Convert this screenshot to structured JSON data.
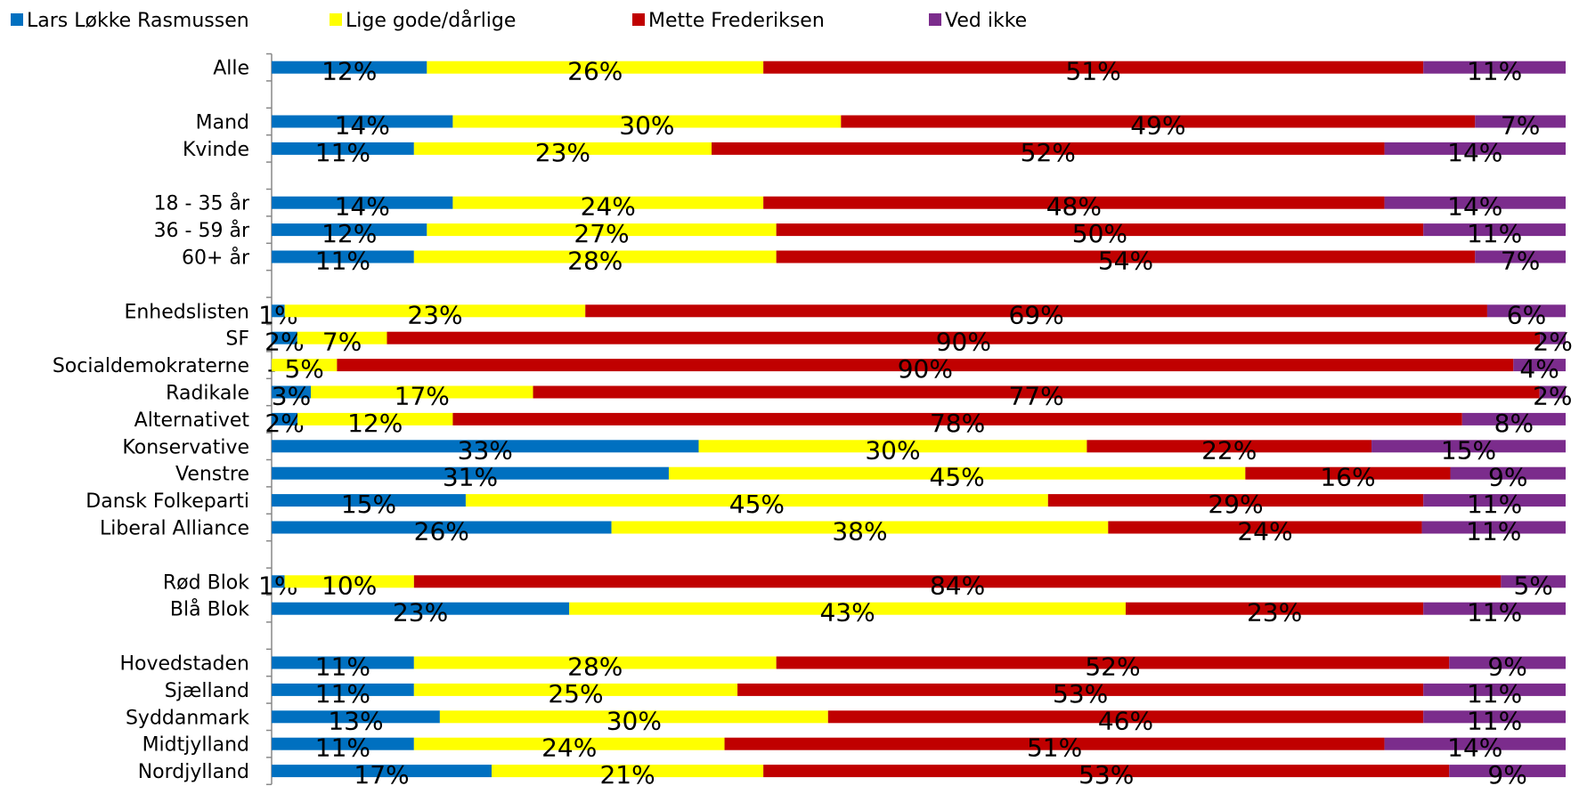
{
  "chart_data": {
    "type": "bar",
    "orientation": "horizontal",
    "stacked": "percent",
    "legend_position": "top",
    "grid": false,
    "xlim": [
      0,
      100
    ],
    "series": [
      {
        "name": "Lars Løkke Rasmussen",
        "color": "#0070C0"
      },
      {
        "name": "Lige gode/dårlige",
        "color": "#FFFF00"
      },
      {
        "name": "Mette Frederiksen",
        "color": "#C00000"
      },
      {
        "name": "Ved ikke",
        "color": "#7B2C8C"
      }
    ],
    "rows": [
      {
        "category": "Alle",
        "values": [
          12,
          26,
          51,
          11
        ],
        "labels": [
          "12%",
          "26%",
          "51%",
          "11%"
        ]
      },
      {
        "category": "",
        "gap": true
      },
      {
        "category": "Mand",
        "values": [
          14,
          30,
          49,
          7
        ],
        "labels": [
          "14%",
          "30%",
          "49%",
          "7%"
        ]
      },
      {
        "category": "Kvinde",
        "values": [
          11,
          23,
          52,
          14
        ],
        "labels": [
          "11%",
          "23%",
          "52%",
          "14%"
        ]
      },
      {
        "category": "",
        "gap": true
      },
      {
        "category": "18 - 35 år",
        "values": [
          14,
          24,
          48,
          14
        ],
        "labels": [
          "14%",
          "24%",
          "48%",
          "14%"
        ]
      },
      {
        "category": "36 - 59 år",
        "values": [
          12,
          27,
          50,
          11
        ],
        "labels": [
          "12%",
          "27%",
          "50%",
          "11%"
        ]
      },
      {
        "category": "60+ år",
        "values": [
          11,
          28,
          54,
          7
        ],
        "labels": [
          "11%",
          "28%",
          "54%",
          "7%"
        ]
      },
      {
        "category": "",
        "gap": true
      },
      {
        "category": "Enhedslisten",
        "values": [
          1,
          23,
          69,
          6
        ],
        "labels": [
          "1%",
          "23%",
          "69%",
          "6%"
        ]
      },
      {
        "category": "SF",
        "values": [
          2,
          7,
          90,
          2
        ],
        "labels": [
          "2%",
          "7%",
          "90%",
          "2%"
        ]
      },
      {
        "category": "Socialdemokraterne",
        "values": [
          0,
          5,
          90,
          4
        ],
        "labels": [
          "-",
          "5%",
          "90%",
          "4%"
        ]
      },
      {
        "category": "Radikale",
        "values": [
          3,
          17,
          77,
          2
        ],
        "labels": [
          "3%",
          "17%",
          "77%",
          "2%"
        ]
      },
      {
        "category": "Alternativet",
        "values": [
          2,
          12,
          78,
          8
        ],
        "labels": [
          "2%",
          "12%",
          "78%",
          "8%"
        ]
      },
      {
        "category": "Konservative",
        "values": [
          33,
          30,
          22,
          15
        ],
        "labels": [
          "33%",
          "30%",
          "22%",
          "15%"
        ]
      },
      {
        "category": "Venstre",
        "values": [
          31,
          45,
          16,
          9
        ],
        "labels": [
          "31%",
          "45%",
          "16%",
          "9%"
        ]
      },
      {
        "category": "Dansk Folkeparti",
        "values": [
          15,
          45,
          29,
          11
        ],
        "labels": [
          "15%",
          "45%",
          "29%",
          "11%"
        ]
      },
      {
        "category": "Liberal Alliance",
        "values": [
          26,
          38,
          24,
          11
        ],
        "labels": [
          "26%",
          "38%",
          "24%",
          "11%"
        ]
      },
      {
        "category": "",
        "gap": true
      },
      {
        "category": "Rød Blok",
        "values": [
          1,
          10,
          84,
          5
        ],
        "labels": [
          "1%",
          "10%",
          "84%",
          "5%"
        ]
      },
      {
        "category": "Blå Blok",
        "values": [
          23,
          43,
          23,
          11
        ],
        "labels": [
          "23%",
          "43%",
          "23%",
          "11%"
        ]
      },
      {
        "category": "",
        "gap": true
      },
      {
        "category": "Hovedstaden",
        "values": [
          11,
          28,
          52,
          9
        ],
        "labels": [
          "11%",
          "28%",
          "52%",
          "9%"
        ]
      },
      {
        "category": "Sjælland",
        "values": [
          11,
          25,
          53,
          11
        ],
        "labels": [
          "11%",
          "25%",
          "53%",
          "11%"
        ]
      },
      {
        "category": "Syddanmark",
        "values": [
          13,
          30,
          46,
          11
        ],
        "labels": [
          "13%",
          "30%",
          "46%",
          "11%"
        ]
      },
      {
        "category": "Midtjylland",
        "values": [
          11,
          24,
          51,
          14
        ],
        "labels": [
          "11%",
          "24%",
          "51%",
          "14%"
        ]
      },
      {
        "category": "Nordjylland",
        "values": [
          17,
          21,
          53,
          9
        ],
        "labels": [
          "17%",
          "21%",
          "53%",
          "9%"
        ]
      }
    ]
  }
}
